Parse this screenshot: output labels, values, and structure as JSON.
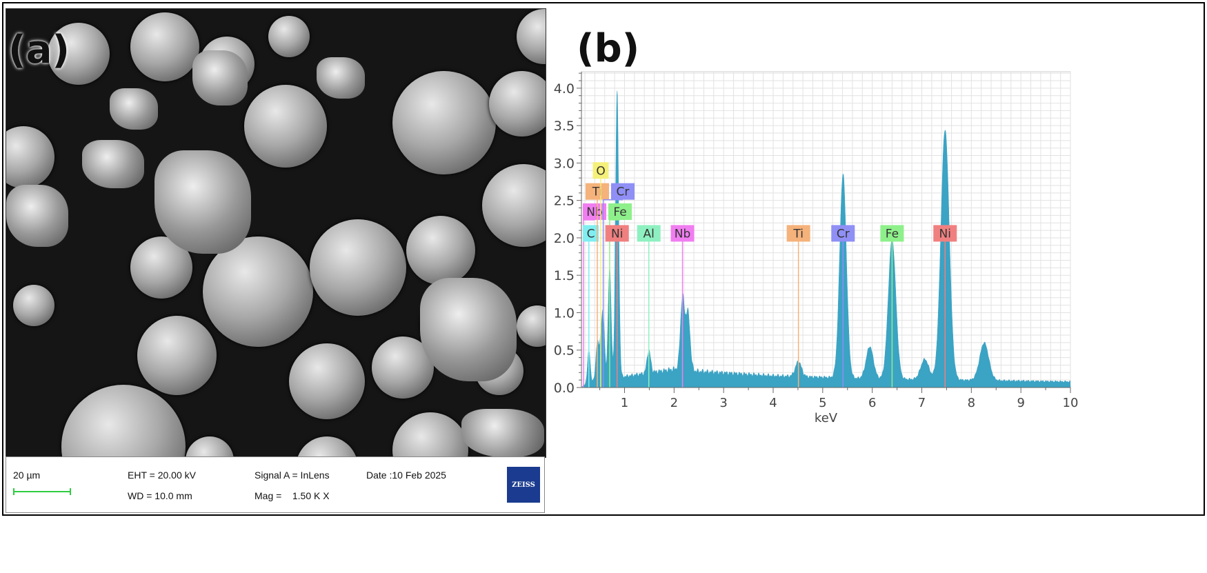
{
  "panel_a": {
    "label": "(a)",
    "info": {
      "scale": "20 µm",
      "eht": "EHT = 20.00 kV",
      "wd": "WD = 10.0 mm",
      "signal": "Signal A = InLens",
      "mag": "Mag =    1.50 K X",
      "date": "Date :10 Feb 2025",
      "logo": "ZEISS"
    }
  },
  "panel_b": {
    "label": "(b)"
  },
  "chart_data": {
    "type": "area",
    "xlabel": "keV",
    "ylabel": "",
    "xlim": [
      0.13,
      10
    ],
    "ylim": [
      0,
      4.22
    ],
    "grid": true,
    "xticks": [
      "1",
      "2",
      "3",
      "4",
      "5",
      "6",
      "7",
      "8",
      "9",
      "10"
    ],
    "yticks": [
      "0.0",
      "0.5",
      "1.0",
      "1.5",
      "2.0",
      "2.5",
      "3.0",
      "3.5",
      "4.0"
    ],
    "fill_color": "#3ba3c4",
    "background": [
      [
        0.15,
        0.02
      ],
      [
        0.4,
        0.1
      ],
      [
        1.0,
        0.15
      ],
      [
        2.0,
        0.25
      ],
      [
        2.5,
        0.22
      ],
      [
        3.0,
        0.2
      ],
      [
        4.0,
        0.16
      ],
      [
        5.0,
        0.14
      ],
      [
        6.0,
        0.12
      ],
      [
        8.0,
        0.1
      ],
      [
        10.0,
        0.08
      ]
    ],
    "peaks": [
      {
        "keV": 0.28,
        "counts": 0.5
      },
      {
        "keV": 0.45,
        "counts": 0.6
      },
      {
        "keV": 0.52,
        "counts": 0.55
      },
      {
        "keV": 0.57,
        "counts": 0.9
      },
      {
        "keV": 0.7,
        "counts": 1.6
      },
      {
        "keV": 0.85,
        "counts": 3.95
      },
      {
        "keV": 1.49,
        "counts": 0.5
      },
      {
        "keV": 2.17,
        "counts": 1.2
      },
      {
        "keV": 2.28,
        "counts": 1.0
      },
      {
        "keV": 4.51,
        "counts": 0.35
      },
      {
        "keV": 5.41,
        "counts": 2.85
      },
      {
        "keV": 5.95,
        "counts": 0.55
      },
      {
        "keV": 6.4,
        "counts": 1.98
      },
      {
        "keV": 7.06,
        "counts": 0.38
      },
      {
        "keV": 7.47,
        "counts": 3.45
      },
      {
        "keV": 8.26,
        "counts": 0.6
      }
    ],
    "element_markers": [
      {
        "label": "Nb",
        "keV": 0.17,
        "color": "#f07ef0",
        "row": 1
      },
      {
        "label": "C",
        "keV": 0.28,
        "color": "#80eef0",
        "row": 0
      },
      {
        "label": "Ti",
        "keV": 0.45,
        "color": "#f5b27a",
        "row": 2
      },
      {
        "label": "O",
        "keV": 0.52,
        "color": "#f5f07a",
        "row": 3
      },
      {
        "label": "Cr",
        "keV": 0.57,
        "color": "#8f8ff5",
        "row": 2
      },
      {
        "label": "Fe",
        "keV": 0.7,
        "color": "#8ef08a",
        "row": 1
      },
      {
        "label": "Ni",
        "keV": 0.85,
        "color": "#f08080",
        "row": 0
      },
      {
        "label": "Al",
        "keV": 1.49,
        "color": "#8ef0c0",
        "row": 0
      },
      {
        "label": "Nb",
        "keV": 2.17,
        "color": "#f07ef0",
        "row": 0
      },
      {
        "label": "Ti",
        "keV": 4.51,
        "color": "#f5b27a",
        "row": 0
      },
      {
        "label": "Cr",
        "keV": 5.41,
        "color": "#8f8ff5",
        "row": 0
      },
      {
        "label": "Fe",
        "keV": 6.4,
        "color": "#8ef08a",
        "row": 0
      },
      {
        "label": "Ni",
        "keV": 7.47,
        "color": "#f08080",
        "row": 0
      }
    ]
  }
}
